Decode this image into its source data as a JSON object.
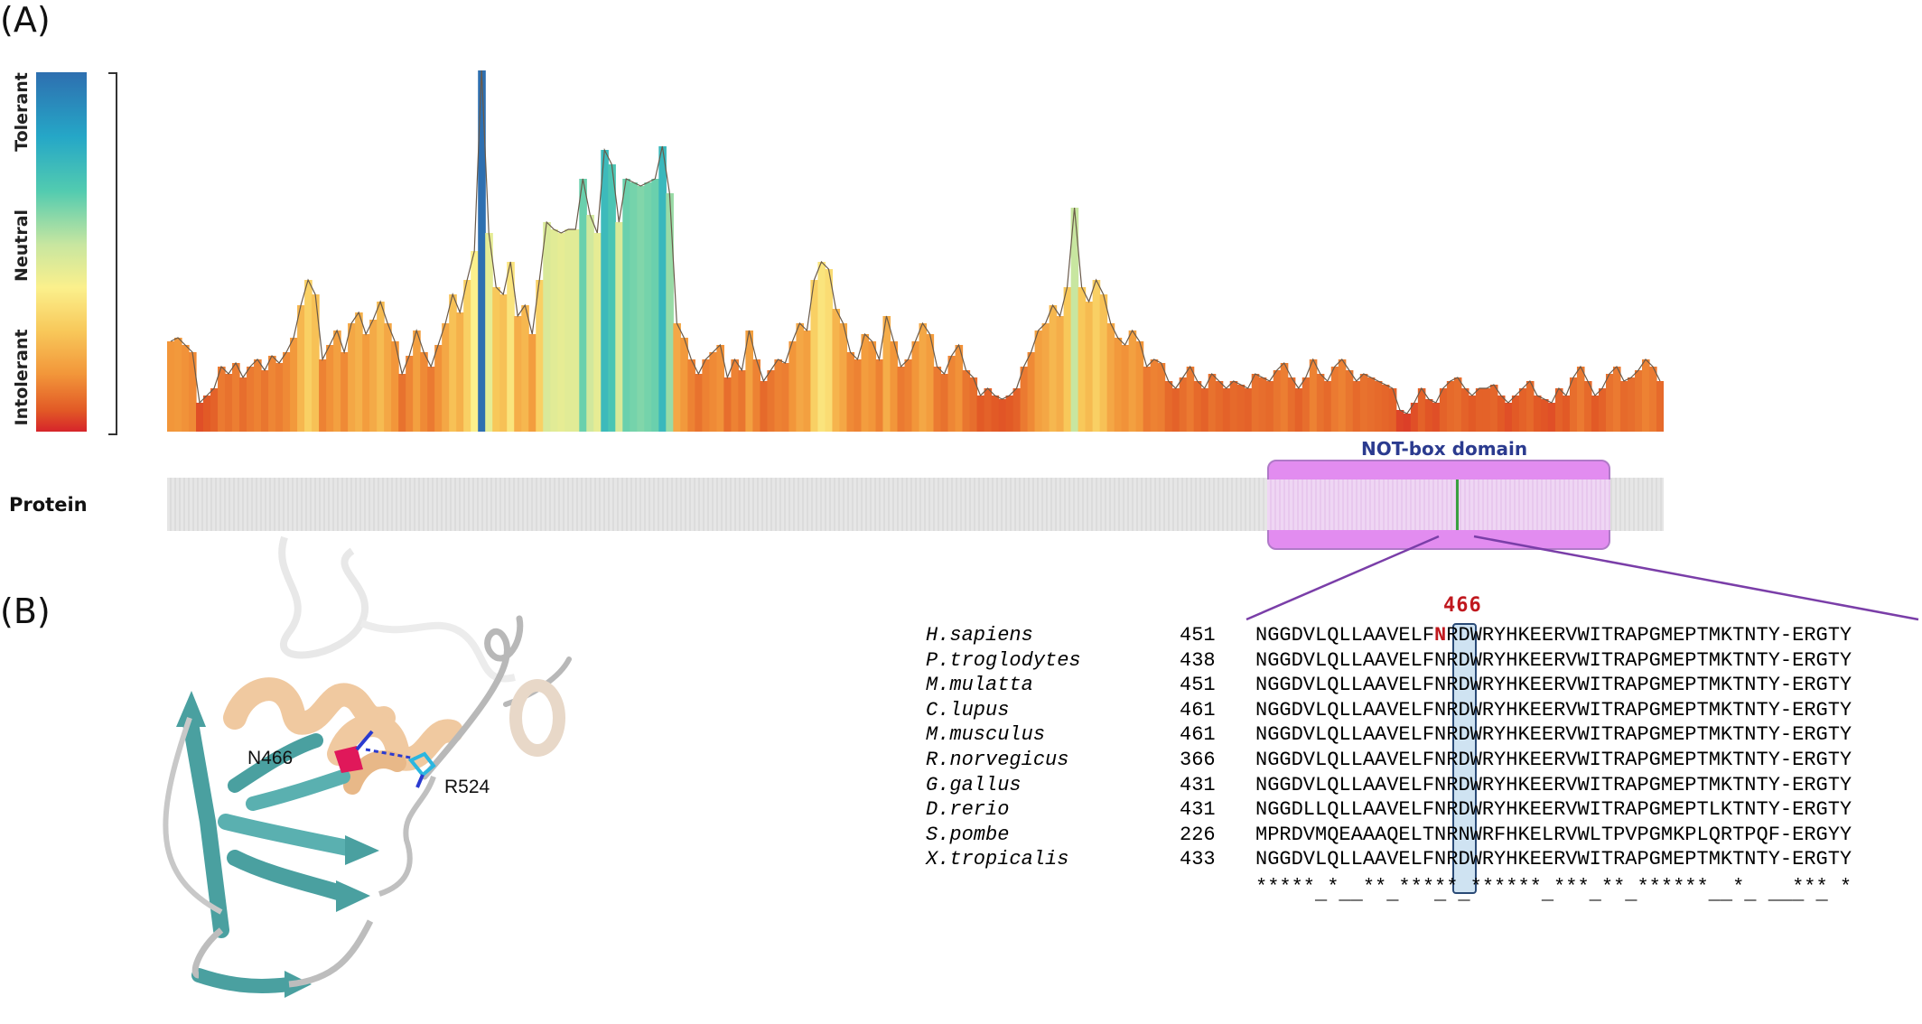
{
  "panels": {
    "a": "(A)",
    "b": "(B)"
  },
  "scale": {
    "labels": [
      "Tolerant",
      "Neutral",
      "Intolerant"
    ],
    "colors": {
      "tolerant": "#2e6fb0",
      "neutral": "#fbf08c",
      "intolerant": "#d6242a"
    }
  },
  "profile": {
    "tolerance_values": [
      0.25,
      0.26,
      0.24,
      0.22,
      0.08,
      0.1,
      0.12,
      0.18,
      0.16,
      0.19,
      0.15,
      0.18,
      0.2,
      0.17,
      0.21,
      0.19,
      0.22,
      0.26,
      0.35,
      0.42,
      0.38,
      0.2,
      0.24,
      0.28,
      0.22,
      0.3,
      0.33,
      0.27,
      0.31,
      0.36,
      0.3,
      0.25,
      0.16,
      0.21,
      0.28,
      0.22,
      0.18,
      0.24,
      0.3,
      0.38,
      0.33,
      0.42,
      0.5,
      1.0,
      0.55,
      0.4,
      0.38,
      0.47,
      0.32,
      0.35,
      0.27,
      0.42,
      0.58,
      0.56,
      0.55,
      0.56,
      0.56,
      0.7,
      0.6,
      0.55,
      0.78,
      0.74,
      0.58,
      0.7,
      0.69,
      0.68,
      0.69,
      0.7,
      0.79,
      0.66,
      0.3,
      0.26,
      0.2,
      0.16,
      0.2,
      0.22,
      0.24,
      0.15,
      0.2,
      0.17,
      0.28,
      0.2,
      0.14,
      0.17,
      0.2,
      0.19,
      0.25,
      0.3,
      0.28,
      0.42,
      0.47,
      0.45,
      0.34,
      0.3,
      0.22,
      0.2,
      0.27,
      0.25,
      0.2,
      0.32,
      0.25,
      0.18,
      0.2,
      0.25,
      0.3,
      0.27,
      0.18,
      0.16,
      0.21,
      0.24,
      0.17,
      0.15,
      0.1,
      0.12,
      0.1,
      0.09,
      0.1,
      0.12,
      0.18,
      0.22,
      0.28,
      0.3,
      0.35,
      0.32,
      0.4,
      0.62,
      0.4,
      0.36,
      0.42,
      0.38,
      0.3,
      0.26,
      0.24,
      0.28,
      0.25,
      0.18,
      0.2,
      0.19,
      0.14,
      0.12,
      0.15,
      0.18,
      0.14,
      0.12,
      0.16,
      0.14,
      0.12,
      0.14,
      0.13,
      0.12,
      0.16,
      0.15,
      0.14,
      0.17,
      0.19,
      0.15,
      0.12,
      0.15,
      0.2,
      0.16,
      0.14,
      0.18,
      0.2,
      0.17,
      0.14,
      0.16,
      0.15,
      0.14,
      0.13,
      0.12,
      0.06,
      0.05,
      0.08,
      0.12,
      0.09,
      0.08,
      0.12,
      0.14,
      0.15,
      0.12,
      0.1,
      0.12,
      0.12,
      0.13,
      0.1,
      0.08,
      0.1,
      0.12,
      0.14,
      0.1,
      0.09,
      0.08,
      0.12,
      0.1,
      0.15,
      0.18,
      0.14,
      0.1,
      0.12,
      0.16,
      0.18,
      0.14,
      0.15,
      0.17,
      0.2,
      0.18,
      0.14
    ]
  },
  "protein_track": {
    "label": "Protein",
    "domain": {
      "name": "NOT-box domain",
      "color": "#e28cf0"
    }
  },
  "alignment": {
    "position_label": "466",
    "rows": [
      {
        "species": "H.sapiens",
        "start": "451",
        "pre": "NGGDVLQLLAAVELF",
        "site": "N",
        "post": "RDWRYHKEERVWITRAPGMEPTMKTNTY-ERGTY"
      },
      {
        "species": "P.troglodytes",
        "start": "438",
        "pre": "NGGDVLQLLAAVELF",
        "site": "N",
        "post": "RDWRYHKEERVWITRAPGMEPTMKTNTY-ERGTY"
      },
      {
        "species": "M.mulatta",
        "start": "451",
        "pre": "NGGDVLQLLAAVELF",
        "site": "N",
        "post": "RDWRYHKEERVWITRAPGMEPTMKTNTY-ERGTY"
      },
      {
        "species": "C.lupus",
        "start": "461",
        "pre": "NGGDVLQLLAAVELF",
        "site": "N",
        "post": "RDWRYHKEERVWITRAPGMEPTMKTNTY-ERGTY"
      },
      {
        "species": "M.musculus",
        "start": "461",
        "pre": "NGGDVLQLLAAVELF",
        "site": "N",
        "post": "RDWRYHKEERVWITRAPGMEPTMKTNTY-ERGTY"
      },
      {
        "species": "R.norvegicus",
        "start": "366",
        "pre": "NGGDVLQLLAAVELF",
        "site": "N",
        "post": "RDWRYHKEERVWITRAPGMEPTMKTNTY-ERGTY"
      },
      {
        "species": "G.gallus",
        "start": "431",
        "pre": "NGGDVLQLLAAVELF",
        "site": "N",
        "post": "RDWRYHKEERVWITRAPGMEPTMKTNTY-ERGTY"
      },
      {
        "species": "D.rerio",
        "start": "431",
        "pre": "NGGDLLQLLAAVELF",
        "site": "N",
        "post": "RDWRYHKEERVWITRAPGMEPTLKTNTY-ERGTY"
      },
      {
        "species": "S.pombe",
        "start": "226",
        "pre": "MPRDVMQEAAAQELT",
        "site": "N",
        "post": "RNWRFHKELRVWLTPVPGMKPLQRTPQF-ERGYY"
      },
      {
        "species": "X.tropicalis",
        "start": "433",
        "pre": "NGGDVLQLLAAVELF",
        "site": "N",
        "post": "RDWRYHKEERVWITRAPGMEPTMKTNTY-ERGTY"
      }
    ],
    "consensus_top": "***** *  ** ***** ****** *** ** ******  *    *** *",
    "consensus_bottom": "     _ __  _   _ _      _   _  _      __ _ ___ _   "
  },
  "structure": {
    "labels": {
      "residue_a": "N466",
      "residue_b": "R524"
    },
    "colors": {
      "helix": "#f0c9a0",
      "strand": "#4aa0a0",
      "loop": "#c8c8c8",
      "site": "#e0185a",
      "partner": "#2ab6e0"
    }
  }
}
